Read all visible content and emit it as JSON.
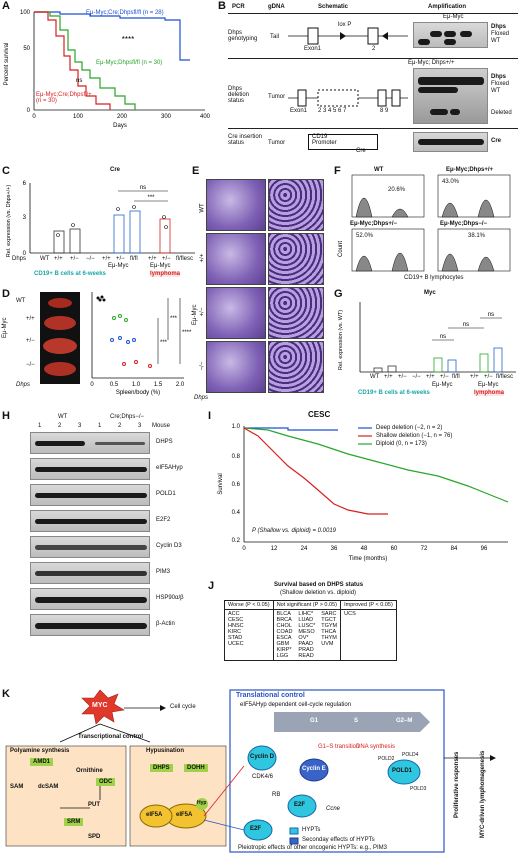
{
  "panels": {
    "A": {
      "label": "A",
      "ylabel": "Percent survival",
      "xlabel": "Days",
      "legend": [
        {
          "text": "Eμ-Myc;Cre;Dhpsfl/fl (n = 28)",
          "color": "#1f4fd6"
        },
        {
          "text": "Eμ-Myc;Dhpsfl/fl (n = 30)",
          "color": "#2aa52a"
        },
        {
          "text": "Eμ-Myc;Cre;Dhpsfl/+ (n = 30)",
          "color": "#d62020"
        }
      ],
      "stats": [
        "****",
        "ns"
      ]
    },
    "B": {
      "label": "B",
      "headers": [
        "PCR",
        "gDNA",
        "Schematic",
        "Amplification"
      ],
      "rows": [
        {
          "name": "Dhps genotyping",
          "tissue": "Tail",
          "right": [
            "Dhps",
            "Floxed",
            "WT"
          ]
        },
        {
          "name": "Dhps deletion status",
          "tissue": "Tumor",
          "right": [
            "Dhps",
            "Floxed",
            "WT",
            "Deleted"
          ]
        },
        {
          "name": "Cre insertion status",
          "tissue": "Tumor",
          "right": [
            "Cre"
          ]
        }
      ],
      "schematic_labels": [
        "lox P",
        "Exon1",
        "2",
        "2 3 4 5 6 7",
        "8 9",
        "CD19 Promoter",
        "Cre"
      ],
      "lane_headers": [
        "Eμ-Myc",
        "WT",
        "Dhps+/+",
        "Dhpsfl/fl; Cre+",
        "Cre+",
        "escapees",
        "Eμ-Myc; Dhps+/+"
      ]
    },
    "C": {
      "label": "C",
      "title": "Cre",
      "ylabel": "Rel. expression (vs. Dhps+/+)",
      "xgroups": [
        "WT",
        "+/+",
        "+/−",
        "−/−",
        "+/+",
        "+/−",
        "fl/fl",
        "+/+",
        "+/−",
        "fl/flesc"
      ],
      "xrow": "Dhps",
      "group_labels": [
        "Eμ-Myc",
        "Eμ-Myc"
      ],
      "footer_cells": "CD19+ B cells at 6-weeks",
      "footer_lymphoma": "lymphoma",
      "stats": [
        "ns",
        "***"
      ]
    },
    "D": {
      "label": "D",
      "rows": [
        "WT",
        "+/+",
        "+/−",
        "−/−"
      ],
      "group": "Eμ-Myc",
      "row_axis": "Dhps",
      "xlabel": "Spleen/body (%)",
      "stats": [
        "***",
        "****",
        "***"
      ]
    },
    "E": {
      "label": "E",
      "rows": [
        "WT",
        "+/+",
        "+/−",
        "−/−"
      ],
      "group": "Eμ-Myc",
      "row_axis": "Dhps"
    },
    "F": {
      "label": "F",
      "plots": [
        {
          "title": "WT",
          "pct": "20.6%"
        },
        {
          "title": "Eμ-Myc;Dhps+/+",
          "pct": "43.0%"
        },
        {
          "title": "Eμ-Myc;Dhps+/−",
          "pct": "52.0%"
        },
        {
          "title": "Eμ-Myc;Dhps−/−",
          "pct": "38.1%"
        }
      ],
      "ylabel": "Count",
      "xlabel": "CD19+ B lymphocytes"
    },
    "G": {
      "label": "G",
      "title": "Myc",
      "ylabel": "Rel. expression (vs. WT)",
      "xgroups": [
        "WT",
        "+/+",
        "+/−",
        "−/−",
        "+/+",
        "+/−",
        "fl/fl",
        "+/+",
        "+/−",
        "fl/flesc"
      ],
      "group_labels": [
        "Eμ-Myc",
        "Eμ-Myc"
      ],
      "footer_cells": "CD19+ B cells at 6-weeks",
      "footer_lymphoma": "lymphoma",
      "stats": [
        "ns",
        "ns",
        "ns"
      ]
    },
    "H": {
      "label": "H",
      "col_groups": [
        "WT",
        "Cre;Dhps−/−"
      ],
      "lanes": [
        "1",
        "2",
        "3",
        "1",
        "2",
        "3"
      ],
      "lane_label": "Mouse",
      "proteins": [
        "DHPS",
        "eIF5AHyp",
        "POLD1",
        "E2F2",
        "Cyclin D3",
        "PIM3",
        "HSP90α/β",
        "β-Actin"
      ]
    },
    "I": {
      "label": "I",
      "title": "CESC",
      "ylabel": "Survival",
      "xlabel": "Time (months)",
      "legend": [
        {
          "text": "Deep deletion (−2, n = 2)",
          "color": "#1f4fd6"
        },
        {
          "text": "Shallow deletion (−1, n = 76)",
          "color": "#d62020"
        },
        {
          "text": "Diploid (0, n = 173)",
          "color": "#2aa52a"
        }
      ],
      "pvalue": "P (Shallow vs. diploid) = 0.0019"
    },
    "J": {
      "label": "J",
      "title": "Survival based on DHPS status",
      "subtitle": "(Shallow deletion vs. diploid)",
      "headers": [
        "Worse (P < 0.05)",
        "Not significant (P > 0.05)",
        "Improved (P < 0.05)"
      ],
      "worse": [
        "ACC",
        "CESC",
        "HNSC",
        "KIRC",
        "STAD",
        "UCEC"
      ],
      "ns_col1": [
        "BLCA",
        "BRCA",
        "CHOL",
        "COAD",
        "ESCA",
        "GBM",
        "KIRP*",
        "LGG"
      ],
      "ns_col2": [
        "LIHC*",
        "LUAD",
        "LUSC*",
        "MESO",
        "OV*",
        "PAAD",
        "PRAD",
        "READ"
      ],
      "ns_col3": [
        "SARC",
        "TGCT",
        "TGYM",
        "THCA",
        "THYM",
        "UVM"
      ],
      "improved": [
        "UCS"
      ]
    },
    "K": {
      "label": "K",
      "myc": "MYC",
      "cell_cycle": "Cell cycle",
      "transcriptional": "Transcriptional control",
      "polyamine_title": "Polyamine synthesis",
      "hypusination_title": "Hypusination",
      "enzymes": [
        "AMD1",
        "ODC",
        "SRM",
        "DHPS",
        "DOHH"
      ],
      "metabolites": [
        "SAM",
        "dcSAM",
        "Ornithine",
        "PUT",
        "SPD"
      ],
      "eif5a": "eIF5A",
      "hyp": "Hyp",
      "translational_title": "Translational control",
      "translational_sub": "eIF5AHyp dependent cell-cycle regulation",
      "phases": [
        "G1",
        "S",
        "G2–M"
      ],
      "cyclin_d": "Cyclin D",
      "cdk": "CDK4/6",
      "cyclin_e": "Cyclin E",
      "g1s": "G1–S transition",
      "dna": "DNA synthesis",
      "e2f": "E2F",
      "rb": "RB",
      "ccne": "Ccne",
      "pold1": "POLD1",
      "pold": [
        "POLD4",
        "POLD2",
        "POLD3"
      ],
      "legend_hypts": "HYPTs",
      "legend_secondary": "Seconday effects of HYPTs",
      "pleiotropic": "Pleiotropic effects of other oncogenic HYPTs: e.g., PIM3",
      "outcomes": [
        "Proliferative responses",
        "MYC-driven lymphomagenesis"
      ]
    }
  },
  "colors": {
    "blue": "#1f4fd6",
    "green": "#2aa52a",
    "red": "#d62020",
    "teal": "#1aa6a6",
    "yellow": "#f2c230",
    "box_green": "#9fd14a",
    "cyan": "#2ec7df",
    "mid_blue": "#3a63c8"
  }
}
